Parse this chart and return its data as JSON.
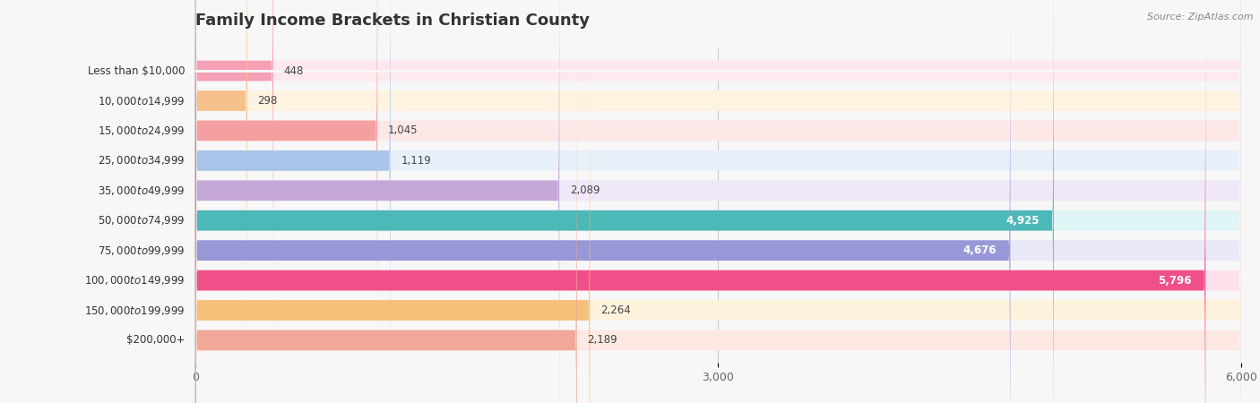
{
  "title": "Family Income Brackets in Christian County",
  "source": "Source: ZipAtlas.com",
  "categories": [
    "Less than $10,000",
    "$10,000 to $14,999",
    "$15,000 to $24,999",
    "$25,000 to $34,999",
    "$35,000 to $49,999",
    "$50,000 to $74,999",
    "$75,000 to $99,999",
    "$100,000 to $149,999",
    "$150,000 to $199,999",
    "$200,000+"
  ],
  "values": [
    448,
    298,
    1045,
    1119,
    2089,
    4925,
    4676,
    5796,
    2264,
    2189
  ],
  "bar_colors": [
    "#f5a0b5",
    "#f5c08a",
    "#f5a0a0",
    "#a8c4e8",
    "#c4a8d8",
    "#4db8b8",
    "#9898d8",
    "#f0508a",
    "#f5c07a",
    "#f0a898"
  ],
  "bar_bg_colors": [
    "#fde8ee",
    "#fef2e0",
    "#fde8e8",
    "#e8f0fa",
    "#f0e8f8",
    "#e0f5f5",
    "#e8e8f8",
    "#fde0ec",
    "#fef2dc",
    "#fde8e4"
  ],
  "value_inside": [
    false,
    false,
    false,
    false,
    false,
    true,
    true,
    true,
    false,
    false
  ],
  "xlim": [
    0,
    6000
  ],
  "xticks": [
    0,
    3000,
    6000
  ],
  "bg_color": "#f7f7f7",
  "title_fontsize": 13,
  "bar_height": 0.68,
  "figsize": [
    14.06,
    4.5
  ]
}
